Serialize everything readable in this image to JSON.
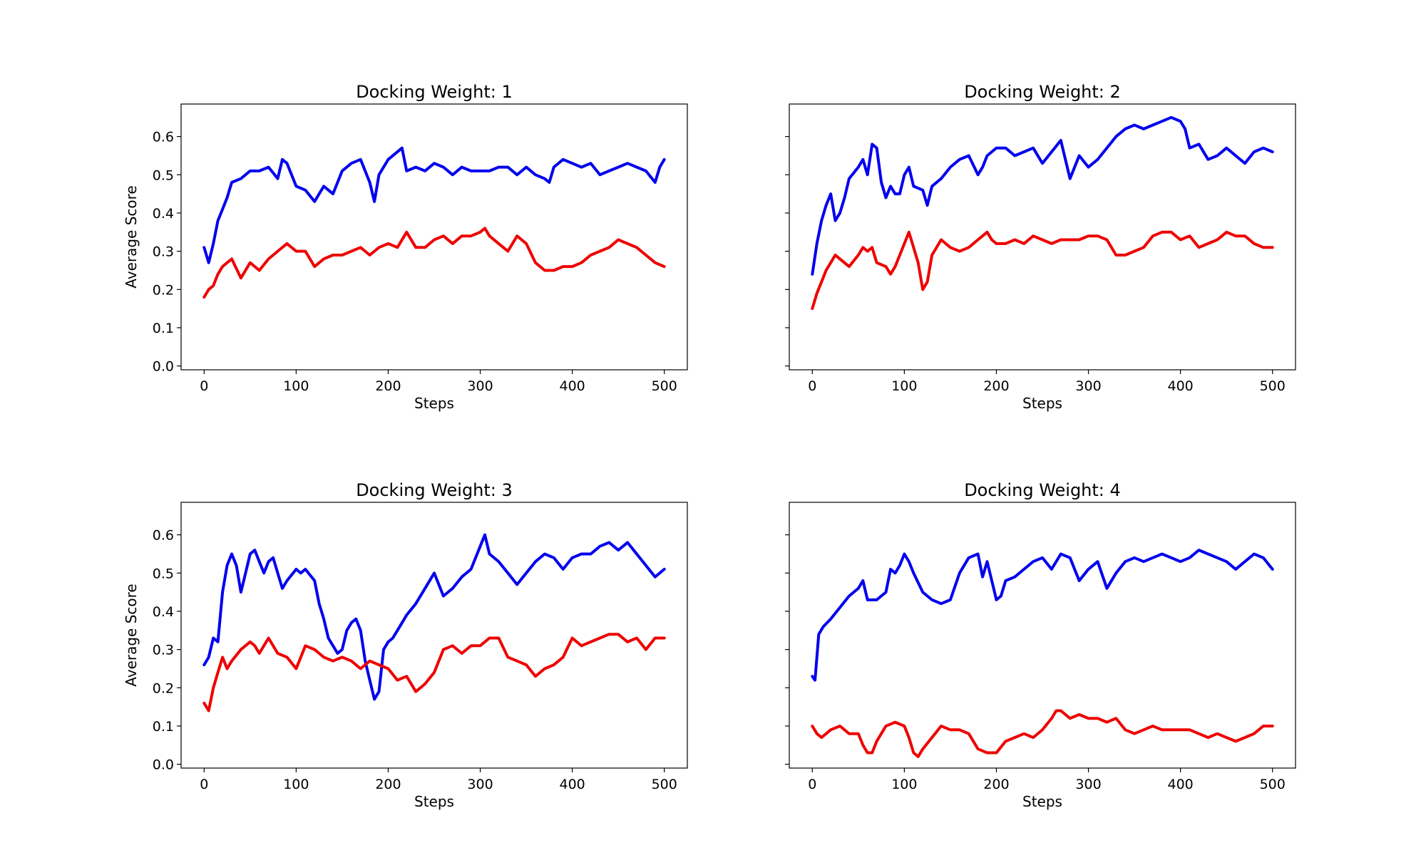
{
  "chart_data": [
    {
      "type": "line",
      "title": "Docking Weight: 1",
      "xlabel": "Steps",
      "ylabel": "Average Score",
      "xlim": [
        -25,
        525
      ],
      "ylim": [
        -0.01,
        0.685
      ],
      "xticks": [
        0,
        100,
        200,
        300,
        400,
        500
      ],
      "yticks": [
        0.0,
        0.1,
        0.2,
        0.3,
        0.4,
        0.5,
        0.6
      ],
      "ytick_labels_visible": true,
      "grid": false,
      "series": [
        {
          "color": "#0000ee",
          "x": [
            0,
            5,
            10,
            15,
            20,
            25,
            30,
            40,
            50,
            60,
            70,
            80,
            85,
            90,
            100,
            110,
            120,
            125,
            130,
            140,
            150,
            160,
            170,
            180,
            185,
            190,
            200,
            210,
            215,
            220,
            230,
            240,
            250,
            260,
            270,
            280,
            290,
            300,
            310,
            320,
            330,
            340,
            350,
            360,
            370,
            375,
            380,
            390,
            400,
            410,
            420,
            430,
            440,
            450,
            460,
            470,
            480,
            490,
            495,
            500
          ],
          "y": [
            0.31,
            0.27,
            0.32,
            0.38,
            0.41,
            0.44,
            0.48,
            0.49,
            0.51,
            0.51,
            0.52,
            0.49,
            0.54,
            0.53,
            0.47,
            0.46,
            0.43,
            0.45,
            0.47,
            0.45,
            0.51,
            0.53,
            0.54,
            0.48,
            0.43,
            0.5,
            0.54,
            0.56,
            0.57,
            0.51,
            0.52,
            0.51,
            0.53,
            0.52,
            0.5,
            0.52,
            0.51,
            0.51,
            0.51,
            0.52,
            0.52,
            0.5,
            0.52,
            0.5,
            0.49,
            0.48,
            0.52,
            0.54,
            0.53,
            0.52,
            0.53,
            0.5,
            0.51,
            0.52,
            0.53,
            0.52,
            0.51,
            0.48,
            0.52,
            0.54
          ]
        },
        {
          "color": "#ee0000",
          "x": [
            0,
            5,
            10,
            15,
            20,
            25,
            30,
            40,
            50,
            60,
            70,
            80,
            90,
            100,
            110,
            120,
            130,
            140,
            150,
            160,
            170,
            180,
            190,
            200,
            210,
            220,
            230,
            240,
            250,
            260,
            270,
            280,
            290,
            300,
            305,
            310,
            320,
            330,
            340,
            350,
            360,
            370,
            380,
            390,
            400,
            410,
            420,
            430,
            440,
            450,
            460,
            470,
            480,
            490,
            500
          ],
          "y": [
            0.18,
            0.2,
            0.21,
            0.24,
            0.26,
            0.27,
            0.28,
            0.23,
            0.27,
            0.25,
            0.28,
            0.3,
            0.32,
            0.3,
            0.3,
            0.26,
            0.28,
            0.29,
            0.29,
            0.3,
            0.31,
            0.29,
            0.31,
            0.32,
            0.31,
            0.35,
            0.31,
            0.31,
            0.33,
            0.34,
            0.32,
            0.34,
            0.34,
            0.35,
            0.36,
            0.34,
            0.32,
            0.3,
            0.34,
            0.32,
            0.27,
            0.25,
            0.25,
            0.26,
            0.26,
            0.27,
            0.29,
            0.3,
            0.31,
            0.33,
            0.32,
            0.31,
            0.29,
            0.27,
            0.26
          ]
        }
      ]
    },
    {
      "type": "line",
      "title": "Docking Weight: 2",
      "xlabel": "Steps",
      "ylabel": "",
      "xlim": [
        -25,
        525
      ],
      "ylim": [
        -0.01,
        0.685
      ],
      "xticks": [
        0,
        100,
        200,
        300,
        400,
        500
      ],
      "yticks": [
        0.0,
        0.1,
        0.2,
        0.3,
        0.4,
        0.5,
        0.6
      ],
      "ytick_labels_visible": false,
      "grid": false,
      "series": [
        {
          "color": "#0000ee",
          "x": [
            0,
            5,
            10,
            15,
            20,
            25,
            30,
            35,
            40,
            50,
            55,
            60,
            65,
            70,
            75,
            80,
            85,
            90,
            95,
            100,
            105,
            110,
            120,
            125,
            130,
            140,
            150,
            160,
            170,
            180,
            185,
            190,
            200,
            210,
            220,
            230,
            240,
            250,
            260,
            270,
            280,
            290,
            300,
            310,
            320,
            330,
            340,
            350,
            360,
            370,
            380,
            390,
            400,
            405,
            410,
            420,
            430,
            440,
            450,
            460,
            470,
            480,
            490,
            500
          ],
          "y": [
            0.24,
            0.32,
            0.38,
            0.42,
            0.45,
            0.38,
            0.4,
            0.44,
            0.49,
            0.52,
            0.54,
            0.5,
            0.58,
            0.57,
            0.48,
            0.44,
            0.47,
            0.45,
            0.45,
            0.5,
            0.52,
            0.47,
            0.46,
            0.42,
            0.47,
            0.49,
            0.52,
            0.54,
            0.55,
            0.5,
            0.52,
            0.55,
            0.57,
            0.57,
            0.55,
            0.56,
            0.57,
            0.53,
            0.56,
            0.59,
            0.49,
            0.55,
            0.52,
            0.54,
            0.57,
            0.6,
            0.62,
            0.63,
            0.62,
            0.63,
            0.64,
            0.65,
            0.64,
            0.62,
            0.57,
            0.58,
            0.54,
            0.55,
            0.57,
            0.55,
            0.53,
            0.56,
            0.57,
            0.56
          ]
        },
        {
          "color": "#ee0000",
          "x": [
            0,
            5,
            10,
            15,
            20,
            25,
            30,
            40,
            50,
            55,
            60,
            65,
            70,
            80,
            85,
            90,
            100,
            105,
            110,
            115,
            120,
            125,
            130,
            140,
            150,
            160,
            170,
            180,
            190,
            195,
            200,
            210,
            220,
            230,
            240,
            250,
            260,
            270,
            280,
            290,
            300,
            310,
            320,
            330,
            340,
            350,
            360,
            370,
            380,
            390,
            400,
            410,
            420,
            430,
            440,
            450,
            460,
            470,
            480,
            490,
            500
          ],
          "y": [
            0.15,
            0.19,
            0.22,
            0.25,
            0.27,
            0.29,
            0.28,
            0.26,
            0.29,
            0.31,
            0.3,
            0.31,
            0.27,
            0.26,
            0.24,
            0.26,
            0.32,
            0.35,
            0.31,
            0.27,
            0.2,
            0.22,
            0.29,
            0.33,
            0.31,
            0.3,
            0.31,
            0.33,
            0.35,
            0.33,
            0.32,
            0.32,
            0.33,
            0.32,
            0.34,
            0.33,
            0.32,
            0.33,
            0.33,
            0.33,
            0.34,
            0.34,
            0.33,
            0.29,
            0.29,
            0.3,
            0.31,
            0.34,
            0.35,
            0.35,
            0.33,
            0.34,
            0.31,
            0.32,
            0.33,
            0.35,
            0.34,
            0.34,
            0.32,
            0.31,
            0.31
          ]
        }
      ]
    },
    {
      "type": "line",
      "title": "Docking Weight: 3",
      "xlabel": "Steps",
      "ylabel": "Average Score",
      "xlim": [
        -25,
        525
      ],
      "ylim": [
        -0.01,
        0.685
      ],
      "xticks": [
        0,
        100,
        200,
        300,
        400,
        500
      ],
      "yticks": [
        0.0,
        0.1,
        0.2,
        0.3,
        0.4,
        0.5,
        0.6
      ],
      "ytick_labels_visible": true,
      "grid": false,
      "series": [
        {
          "color": "#0000ee",
          "x": [
            0,
            5,
            10,
            15,
            20,
            25,
            30,
            35,
            40,
            45,
            50,
            55,
            60,
            65,
            70,
            75,
            80,
            85,
            90,
            100,
            105,
            110,
            120,
            125,
            130,
            135,
            140,
            145,
            150,
            155,
            160,
            165,
            170,
            175,
            180,
            185,
            190,
            195,
            200,
            205,
            210,
            220,
            230,
            240,
            250,
            260,
            270,
            280,
            290,
            300,
            305,
            310,
            320,
            330,
            340,
            350,
            360,
            370,
            380,
            390,
            400,
            410,
            420,
            430,
            440,
            450,
            460,
            470,
            480,
            490,
            500
          ],
          "y": [
            0.26,
            0.28,
            0.33,
            0.32,
            0.45,
            0.52,
            0.55,
            0.52,
            0.45,
            0.5,
            0.55,
            0.56,
            0.53,
            0.5,
            0.53,
            0.54,
            0.5,
            0.46,
            0.48,
            0.51,
            0.5,
            0.51,
            0.48,
            0.42,
            0.38,
            0.33,
            0.31,
            0.29,
            0.3,
            0.35,
            0.37,
            0.38,
            0.35,
            0.27,
            0.22,
            0.17,
            0.19,
            0.3,
            0.32,
            0.33,
            0.35,
            0.39,
            0.42,
            0.46,
            0.5,
            0.44,
            0.46,
            0.49,
            0.51,
            0.57,
            0.6,
            0.55,
            0.53,
            0.5,
            0.47,
            0.5,
            0.53,
            0.55,
            0.54,
            0.51,
            0.54,
            0.55,
            0.55,
            0.57,
            0.58,
            0.56,
            0.58,
            0.55,
            0.52,
            0.49,
            0.51
          ]
        },
        {
          "color": "#ee0000",
          "x": [
            0,
            5,
            10,
            15,
            20,
            25,
            30,
            40,
            50,
            55,
            60,
            70,
            80,
            90,
            100,
            110,
            120,
            130,
            140,
            150,
            160,
            170,
            180,
            190,
            200,
            210,
            220,
            230,
            240,
            250,
            260,
            270,
            280,
            290,
            300,
            310,
            320,
            330,
            340,
            350,
            360,
            370,
            380,
            390,
            400,
            410,
            420,
            430,
            440,
            450,
            460,
            470,
            480,
            490,
            500
          ],
          "y": [
            0.16,
            0.14,
            0.2,
            0.24,
            0.28,
            0.25,
            0.27,
            0.3,
            0.32,
            0.31,
            0.29,
            0.33,
            0.29,
            0.28,
            0.25,
            0.31,
            0.3,
            0.28,
            0.27,
            0.28,
            0.27,
            0.25,
            0.27,
            0.26,
            0.25,
            0.22,
            0.23,
            0.19,
            0.21,
            0.24,
            0.3,
            0.31,
            0.29,
            0.31,
            0.31,
            0.33,
            0.33,
            0.28,
            0.27,
            0.26,
            0.23,
            0.25,
            0.26,
            0.28,
            0.33,
            0.31,
            0.32,
            0.33,
            0.34,
            0.34,
            0.32,
            0.33,
            0.3,
            0.33,
            0.33
          ]
        }
      ]
    },
    {
      "type": "line",
      "title": "Docking Weight: 4",
      "xlabel": "Steps",
      "ylabel": "",
      "xlim": [
        -25,
        525
      ],
      "ylim": [
        -0.01,
        0.685
      ],
      "xticks": [
        0,
        100,
        200,
        300,
        400,
        500
      ],
      "yticks": [
        0.0,
        0.1,
        0.2,
        0.3,
        0.4,
        0.5,
        0.6
      ],
      "ytick_labels_visible": false,
      "grid": false,
      "series": [
        {
          "color": "#0000ee",
          "x": [
            0,
            3,
            7,
            12,
            20,
            30,
            40,
            50,
            55,
            60,
            70,
            80,
            85,
            90,
            95,
            100,
            105,
            110,
            120,
            130,
            140,
            150,
            160,
            170,
            180,
            185,
            190,
            200,
            205,
            210,
            220,
            230,
            240,
            250,
            260,
            270,
            280,
            290,
            300,
            310,
            320,
            330,
            340,
            350,
            360,
            370,
            380,
            390,
            400,
            410,
            420,
            430,
            440,
            450,
            460,
            470,
            480,
            490,
            500
          ],
          "y": [
            0.23,
            0.22,
            0.34,
            0.36,
            0.38,
            0.41,
            0.44,
            0.46,
            0.48,
            0.43,
            0.43,
            0.45,
            0.51,
            0.5,
            0.52,
            0.55,
            0.53,
            0.5,
            0.45,
            0.43,
            0.42,
            0.43,
            0.5,
            0.54,
            0.55,
            0.49,
            0.53,
            0.43,
            0.44,
            0.48,
            0.49,
            0.51,
            0.53,
            0.54,
            0.51,
            0.55,
            0.54,
            0.48,
            0.51,
            0.53,
            0.46,
            0.5,
            0.53,
            0.54,
            0.53,
            0.54,
            0.55,
            0.54,
            0.53,
            0.54,
            0.56,
            0.55,
            0.54,
            0.53,
            0.51,
            0.53,
            0.55,
            0.54,
            0.51
          ]
        },
        {
          "color": "#ee0000",
          "x": [
            0,
            5,
            10,
            20,
            30,
            40,
            50,
            55,
            60,
            65,
            70,
            80,
            90,
            100,
            105,
            110,
            115,
            120,
            130,
            140,
            150,
            160,
            170,
            180,
            190,
            200,
            210,
            220,
            230,
            240,
            250,
            260,
            265,
            270,
            280,
            290,
            300,
            310,
            320,
            330,
            340,
            350,
            360,
            370,
            380,
            390,
            400,
            410,
            420,
            430,
            440,
            450,
            460,
            470,
            480,
            490,
            500
          ],
          "y": [
            0.1,
            0.08,
            0.07,
            0.09,
            0.1,
            0.08,
            0.08,
            0.05,
            0.03,
            0.03,
            0.06,
            0.1,
            0.11,
            0.1,
            0.07,
            0.03,
            0.02,
            0.04,
            0.07,
            0.1,
            0.09,
            0.09,
            0.08,
            0.04,
            0.03,
            0.03,
            0.06,
            0.07,
            0.08,
            0.07,
            0.09,
            0.12,
            0.14,
            0.14,
            0.12,
            0.13,
            0.12,
            0.12,
            0.11,
            0.12,
            0.09,
            0.08,
            0.09,
            0.1,
            0.09,
            0.09,
            0.09,
            0.09,
            0.08,
            0.07,
            0.08,
            0.07,
            0.06,
            0.07,
            0.08,
            0.1,
            0.1
          ]
        }
      ]
    }
  ]
}
